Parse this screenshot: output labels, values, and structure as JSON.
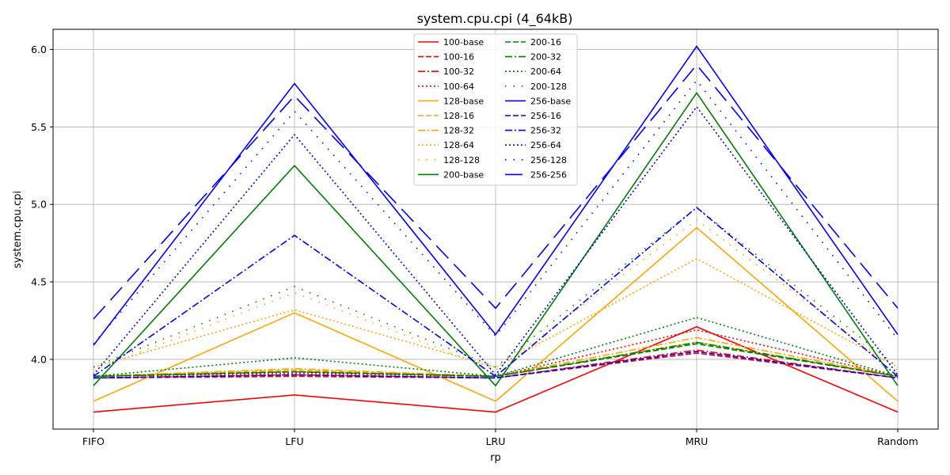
{
  "chart_data": {
    "type": "line",
    "title": "system.cpu.cpi (4_64kB)",
    "xlabel": "rp",
    "ylabel": "system.cpu.cpi",
    "categories": [
      "FIFO",
      "LFU",
      "LRU",
      "MRU",
      "Random"
    ],
    "ylim": [
      3.55,
      6.13
    ],
    "yticks": [
      "4.0",
      "4.5",
      "5.0",
      "5.5",
      "6.0"
    ],
    "grid": true,
    "legend_position": "top-center",
    "series": [
      {
        "name": "100-base",
        "color": "#ff0000",
        "dash": "solid",
        "values": [
          3.66,
          3.77,
          3.66,
          4.21,
          3.66
        ]
      },
      {
        "name": "100-16",
        "color": "#ff0000",
        "dash": "dashed",
        "values": [
          3.88,
          3.89,
          3.88,
          4.04,
          3.88
        ]
      },
      {
        "name": "100-32",
        "color": "#ff0000",
        "dash": "dashdot",
        "values": [
          3.88,
          3.9,
          3.88,
          4.06,
          3.88
        ]
      },
      {
        "name": "100-64",
        "color": "#ff0000",
        "dash": "dotted",
        "values": [
          3.89,
          3.91,
          3.89,
          4.19,
          3.89
        ]
      },
      {
        "name": "128-base",
        "color": "#ffa500",
        "dash": "solid",
        "values": [
          3.73,
          4.3,
          3.73,
          4.85,
          3.73
        ]
      },
      {
        "name": "128-16",
        "color": "#ffa500",
        "dash": "dashed",
        "values": [
          3.89,
          3.93,
          3.89,
          4.11,
          3.89
        ]
      },
      {
        "name": "128-32",
        "color": "#ffa500",
        "dash": "dashdot",
        "values": [
          3.89,
          3.94,
          3.89,
          4.14,
          3.89
        ]
      },
      {
        "name": "128-64",
        "color": "#ffa500",
        "dash": "dotted",
        "values": [
          3.95,
          4.32,
          3.95,
          4.65,
          3.95
        ]
      },
      {
        "name": "128-128",
        "color": "#ffa500",
        "dash": "sparse",
        "values": [
          3.93,
          4.43,
          3.93,
          4.9,
          3.93
        ]
      },
      {
        "name": "200-base",
        "color": "#008000",
        "dash": "solid",
        "values": [
          3.83,
          5.25,
          3.83,
          5.72,
          3.83
        ]
      },
      {
        "name": "200-16",
        "color": "#008000",
        "dash": "dashed",
        "values": [
          3.89,
          3.92,
          3.89,
          4.1,
          3.89
        ]
      },
      {
        "name": "200-32",
        "color": "#008000",
        "dash": "dashdot",
        "values": [
          3.89,
          3.92,
          3.89,
          4.11,
          3.89
        ]
      },
      {
        "name": "200-64",
        "color": "#008000",
        "dash": "dotted",
        "values": [
          3.89,
          4.01,
          3.89,
          4.27,
          3.89
        ]
      },
      {
        "name": "200-128",
        "color": "#008000",
        "dash": "sparse",
        "values": [
          3.95,
          4.47,
          3.95,
          4.98,
          3.95
        ]
      },
      {
        "name": "256-base",
        "color": "#0000ff",
        "dash": "solid",
        "values": [
          4.09,
          5.78,
          4.16,
          6.02,
          4.16
        ]
      },
      {
        "name": "256-16",
        "color": "#0000ff",
        "dash": "dashed",
        "values": [
          3.88,
          3.9,
          3.88,
          4.05,
          3.88
        ]
      },
      {
        "name": "256-32",
        "color": "#0000ff",
        "dash": "dashdot",
        "values": [
          3.89,
          4.8,
          3.89,
          4.98,
          3.89
        ]
      },
      {
        "name": "256-64",
        "color": "#0000ff",
        "dash": "dotted",
        "values": [
          3.9,
          5.45,
          3.9,
          5.63,
          3.9
        ]
      },
      {
        "name": "256-128",
        "color": "#0000ff",
        "dash": "sparse",
        "values": [
          4.1,
          5.6,
          4.15,
          5.8,
          4.13
        ]
      },
      {
        "name": "256-256",
        "color": "#0000ff",
        "dash": "longdash",
        "values": [
          4.26,
          5.7,
          4.33,
          5.9,
          4.33
        ]
      }
    ]
  }
}
